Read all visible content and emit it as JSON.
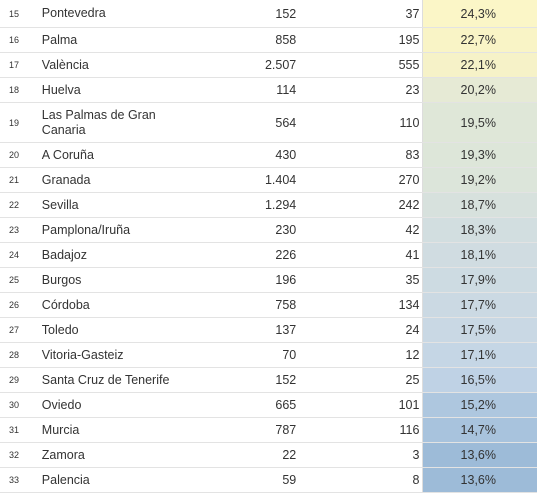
{
  "table": {
    "rows": [
      {
        "rank": "15",
        "name": "Pontevedra",
        "total": "152",
        "cases": "37",
        "pct": "24,3%",
        "color": "#fbf6c7"
      },
      {
        "rank": "16",
        "name": "Palma",
        "total": "858",
        "cases": "195",
        "pct": "22,7%",
        "color": "#f9f4c6"
      },
      {
        "rank": "17",
        "name": "València",
        "total": "2.507",
        "cases": "555",
        "pct": "22,1%",
        "color": "#f6f2c8"
      },
      {
        "rank": "18",
        "name": "Huelva",
        "total": "114",
        "cases": "23",
        "pct": "20,2%",
        "color": "#e6ead5"
      },
      {
        "rank": "19",
        "name": "Las Palmas de Gran Canaria",
        "total": "564",
        "cases": "110",
        "pct": "19,5%",
        "color": "#dfe7d8"
      },
      {
        "rank": "20",
        "name": "A Coruña",
        "total": "430",
        "cases": "83",
        "pct": "19,3%",
        "color": "#dde6d9"
      },
      {
        "rank": "21",
        "name": "Granada",
        "total": "1.404",
        "cases": "270",
        "pct": "19,2%",
        "color": "#dce5da"
      },
      {
        "rank": "22",
        "name": "Sevilla",
        "total": "1.294",
        "cases": "242",
        "pct": "18,7%",
        "color": "#d7e1dd"
      },
      {
        "rank": "23",
        "name": "Pamplona/Iruña",
        "total": "230",
        "cases": "42",
        "pct": "18,3%",
        "color": "#d2dee0"
      },
      {
        "rank": "24",
        "name": "Badajoz",
        "total": "226",
        "cases": "41",
        "pct": "18,1%",
        "color": "#d0dce1"
      },
      {
        "rank": "25",
        "name": "Burgos",
        "total": "196",
        "cases": "35",
        "pct": "17,9%",
        "color": "#cddbe2"
      },
      {
        "rank": "26",
        "name": "Córdoba",
        "total": "758",
        "cases": "134",
        "pct": "17,7%",
        "color": "#cbd9e3"
      },
      {
        "rank": "27",
        "name": "Toledo",
        "total": "137",
        "cases": "24",
        "pct": "17,5%",
        "color": "#c9d8e4"
      },
      {
        "rank": "28",
        "name": "Vitoria-Gasteiz",
        "total": "70",
        "cases": "12",
        "pct": "17,1%",
        "color": "#c5d6e5"
      },
      {
        "rank": "29",
        "name": "Santa Cruz de Tenerife",
        "total": "152",
        "cases": "25",
        "pct": "16,5%",
        "color": "#bfd2e5"
      },
      {
        "rank": "30",
        "name": "Oviedo",
        "total": "665",
        "cases": "101",
        "pct": "15,2%",
        "color": "#aec7df"
      },
      {
        "rank": "31",
        "name": "Murcia",
        "total": "787",
        "cases": "116",
        "pct": "14,7%",
        "color": "#a8c3dd"
      },
      {
        "rank": "32",
        "name": "Zamora",
        "total": "22",
        "cases": "3",
        "pct": "13,6%",
        "color": "#9dbbd8"
      },
      {
        "rank": "33",
        "name": "Palencia",
        "total": "59",
        "cases": "8",
        "pct": "13,6%",
        "color": "#9dbbd8"
      }
    ]
  }
}
